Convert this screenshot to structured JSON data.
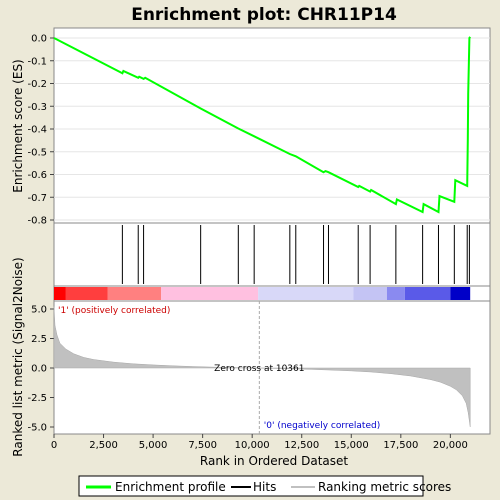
{
  "chart_data": {
    "type": "line",
    "title": "Enrichment plot: CHR11P14",
    "es_panel": {
      "ylabel": "Enrichment score (ES)",
      "ylim": [
        -0.8,
        0.0
      ],
      "yticks": [
        "0.0",
        "-0.1",
        "-0.2",
        "-0.3",
        "-0.4",
        "-0.5",
        "-0.6",
        "-0.7",
        "-0.8"
      ],
      "series": [
        {
          "name": "Enrichment profile",
          "color": "#00ff00",
          "x": [
            0,
            3450,
            3500,
            4250,
            4300,
            4520,
            4600,
            7400,
            9300,
            10100,
            11900,
            12200,
            13600,
            13700,
            13850,
            15350,
            15400,
            15950,
            16000,
            17250,
            17300,
            18600,
            18650,
            19400,
            19450,
            20200,
            20250,
            20850,
            20880,
            20900,
            20960,
            21000
          ],
          "y": [
            0.0,
            -0.155,
            -0.145,
            -0.175,
            -0.17,
            -0.18,
            -0.175,
            -0.31,
            -0.398,
            -0.432,
            -0.51,
            -0.52,
            -0.59,
            -0.585,
            -0.59,
            -0.655,
            -0.65,
            -0.675,
            -0.668,
            -0.73,
            -0.71,
            -0.765,
            -0.73,
            -0.765,
            -0.695,
            -0.72,
            -0.625,
            -0.65,
            -0.45,
            -0.245,
            0.0,
            0.005
          ]
        }
      ]
    },
    "hits": {
      "name": "Hits",
      "positions": [
        3450,
        4250,
        4520,
        7400,
        9300,
        10100,
        11900,
        12200,
        13600,
        13850,
        15350,
        15950,
        17250,
        18600,
        19400,
        20200,
        20850,
        20960
      ]
    },
    "metric_panel": {
      "ylabel": "Ranked list metric (Signal2Noise)",
      "xlabel": "Rank in Ordered Dataset",
      "ylim": [
        -5.3,
        5.3
      ],
      "yticks": [
        "5.0",
        "2.5",
        "0.0",
        "-2.5",
        "-5.0"
      ],
      "xticks": [
        "0",
        "2,500",
        "5,000",
        "7,500",
        "10,000",
        "12,500",
        "15,000",
        "17,500",
        "20,000"
      ],
      "xlim": [
        0,
        22000
      ],
      "n_genes": 21000,
      "series": [
        {
          "name": "Ranking metric scores",
          "color": "#c0c0c0",
          "x": [
            0,
            50,
            150,
            300,
            600,
            1000,
            1500,
            2000,
            3000,
            4000,
            5000,
            6000,
            7000,
            8000,
            9000,
            10000,
            10361,
            11000,
            12000,
            13000,
            14000,
            15000,
            16000,
            17000,
            18000,
            19000,
            19500,
            20000,
            20300,
            20600,
            20800,
            20900,
            21000
          ],
          "y": [
            5.2,
            3.6,
            2.8,
            2.1,
            1.6,
            1.2,
            0.9,
            0.72,
            0.5,
            0.36,
            0.26,
            0.19,
            0.13,
            0.08,
            0.04,
            0.01,
            0.0,
            -0.03,
            -0.07,
            -0.12,
            -0.18,
            -0.25,
            -0.34,
            -0.48,
            -0.68,
            -0.98,
            -1.2,
            -1.55,
            -1.85,
            -2.35,
            -3.0,
            -3.8,
            -5.0
          ]
        }
      ],
      "zero_cross_label": "Zero cross at 10361",
      "zero_cross": 10361,
      "pos_label": "'1' (positively correlated)",
      "neg_label": "'0' (negatively correlated)",
      "pos_color": "#cc0000",
      "neg_color": "#0000cc"
    },
    "heat_bar": {
      "segments": [
        {
          "from": 0,
          "to": 600,
          "color": "#ff0000"
        },
        {
          "from": 600,
          "to": 2700,
          "color": "#ff3e3e"
        },
        {
          "from": 2700,
          "to": 5400,
          "color": "#ff8080"
        },
        {
          "from": 5400,
          "to": 10300,
          "color": "#ffc0e0"
        },
        {
          "from": 10300,
          "to": 15100,
          "color": "#d8d8f8"
        },
        {
          "from": 15100,
          "to": 16800,
          "color": "#c4c4f4"
        },
        {
          "from": 16800,
          "to": 17700,
          "color": "#8a8af0"
        },
        {
          "from": 17700,
          "to": 20000,
          "color": "#5a5ae8"
        },
        {
          "from": 20000,
          "to": 21000,
          "color": "#0000c8"
        }
      ]
    },
    "legend": {
      "position": "bottom",
      "items": [
        {
          "label": "Enrichment profile",
          "color": "#00ff00",
          "kind": "line"
        },
        {
          "label": "Hits",
          "color": "#000000",
          "kind": "line"
        },
        {
          "label": "Ranking metric scores",
          "color": "#c0c0c0",
          "kind": "line"
        }
      ]
    }
  }
}
